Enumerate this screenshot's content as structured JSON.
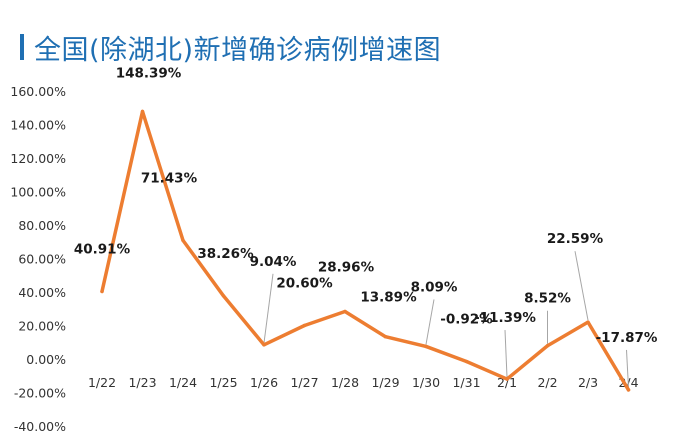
{
  "page": {
    "title": "全国(除湖北)新增确诊病例增速图"
  },
  "colors": {
    "title": "#1f6fb3",
    "line": "#ed7d31",
    "axis_text": "#333333",
    "leader": "#a6a6a6",
    "grid": "none"
  },
  "chart_data": {
    "type": "line",
    "title": "全国(除湖北)新增确诊病例增速图",
    "xlabel": "",
    "ylabel": "",
    "grid": false,
    "legend": "none",
    "ylim": [
      -40,
      160
    ],
    "y_tick_labels": [
      "160.00%",
      "140.00%",
      "120.00%",
      "100.00%",
      "80.00%",
      "60.00%",
      "40.00%",
      "20.00%",
      "0.00%",
      "-20.00%",
      "-40.00%"
    ],
    "categories": [
      "1/22",
      "1/23",
      "1/24",
      "1/25",
      "1/26",
      "1/27",
      "1/28",
      "1/29",
      "1/30",
      "1/31",
      "2/1",
      "2/2",
      "2/3",
      "2/4"
    ],
    "series": [
      {
        "values": [
          40.91,
          148.39,
          71.43,
          38.26,
          9.04,
          20.6,
          28.96,
          13.89,
          8.09,
          -0.92,
          -11.39,
          8.52,
          22.59,
          -17.87
        ],
        "labels": [
          "40.91%",
          "148.39%",
          "71.43%",
          "38.26%",
          "9.04%",
          "20.60%",
          "28.96%",
          "13.89%",
          "8.09%",
          "-0.92%",
          "-11.39%",
          "8.52%",
          "22.59%",
          "-17.87%"
        ]
      }
    ]
  }
}
